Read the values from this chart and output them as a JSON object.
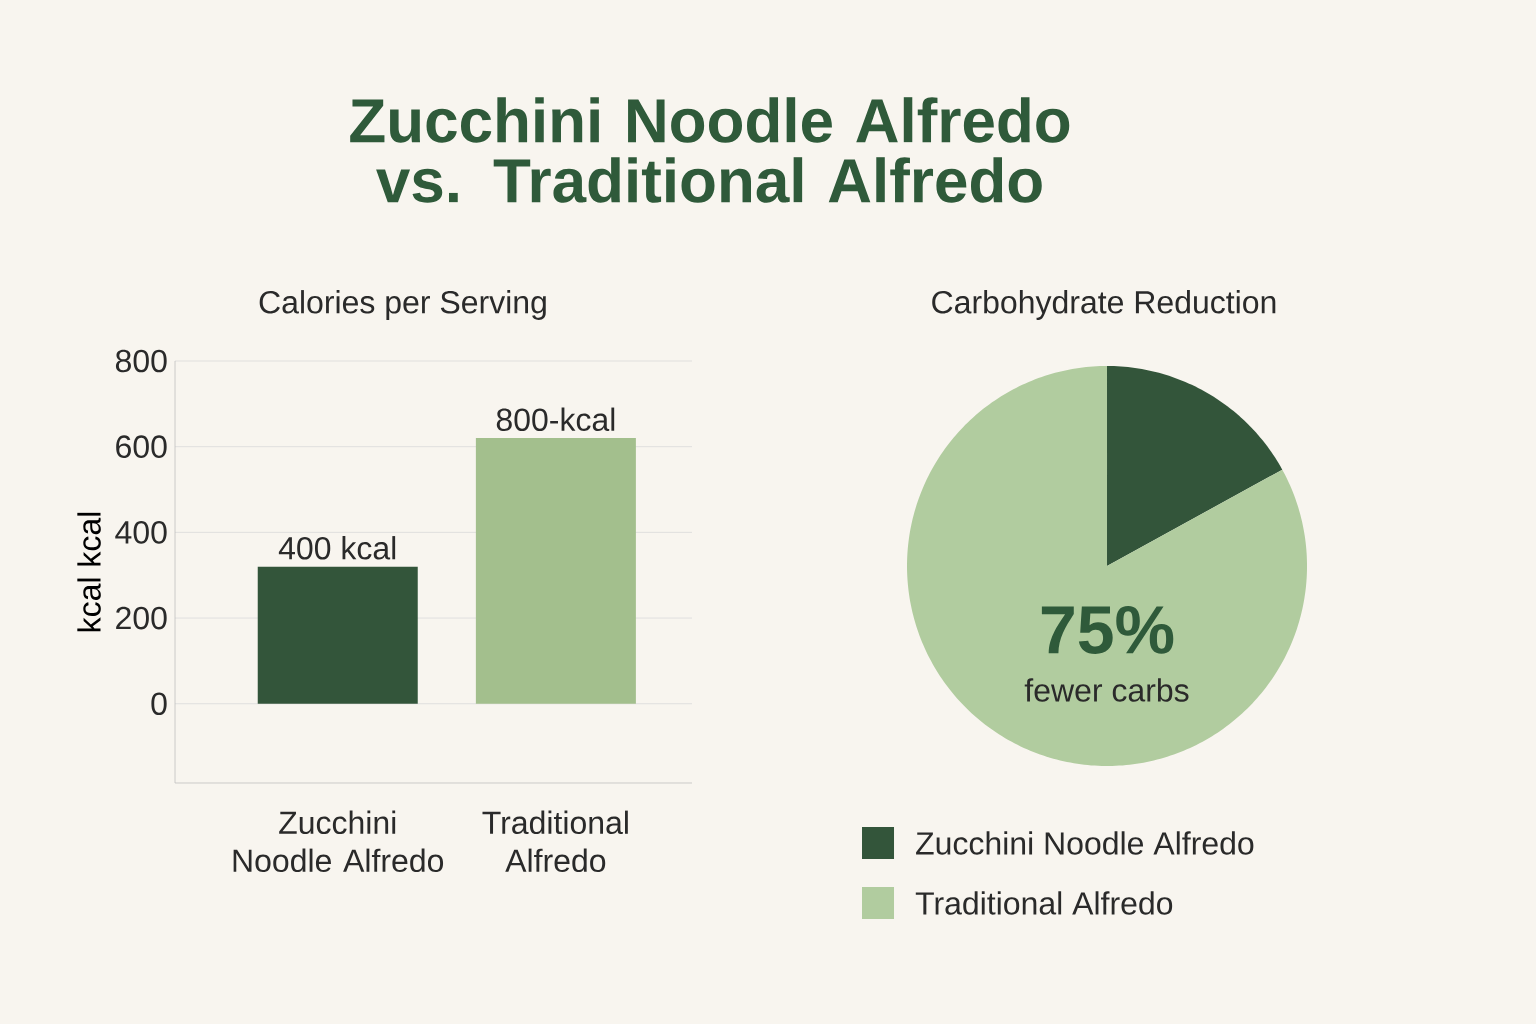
{
  "chart_data": [
    {
      "type": "bar",
      "title": "Zucchini Noodle Alfredo vs. Traditional Alfredo",
      "subtitle": "Calories per Serving",
      "ylabel": "kcal kcal",
      "categories": [
        "Zucchini Noodle Alfredo",
        "Traditional Alfredo"
      ],
      "values": [
        320,
        620
      ],
      "colors": [
        "#33553a",
        "#a3bf8d"
      ],
      "annotations": [
        {
          "text": "400 kcal",
          "x": "Zucchini Noodle Alfredo",
          "y": 320
        },
        {
          "text": "800-kcal",
          "x": "Traditional Alfredo",
          "y": 620
        }
      ],
      "ylim": [
        -185,
        800
      ],
      "yticks": [
        0,
        200,
        400,
        600,
        800
      ],
      "grid": "y"
    },
    {
      "type": "pie",
      "title": "Carbohydrate Reduction",
      "categories": [
        "Zucchini Noodle Alfredo",
        "Traditional Alfredo"
      ],
      "values": [
        17,
        83
      ],
      "colors": [
        "#33553a",
        "#b1cc9f"
      ],
      "legend": "bottom",
      "annotations": [
        "75%",
        "fewer carbs"
      ]
    }
  ]
}
